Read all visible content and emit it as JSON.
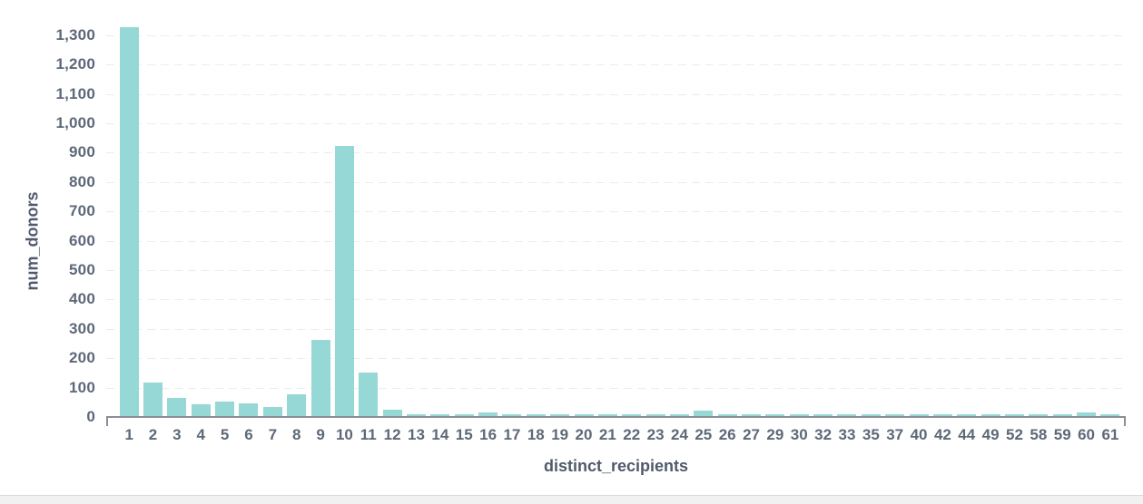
{
  "chart_data": {
    "type": "bar",
    "title": "",
    "xlabel": "distinct_recipients",
    "ylabel": "num_donors",
    "categories": [
      "1",
      "2",
      "3",
      "4",
      "5",
      "6",
      "7",
      "8",
      "9",
      "10",
      "11",
      "12",
      "13",
      "14",
      "15",
      "16",
      "17",
      "18",
      "19",
      "20",
      "21",
      "22",
      "23",
      "24",
      "25",
      "26",
      "27",
      "29",
      "30",
      "32",
      "33",
      "35",
      "37",
      "40",
      "42",
      "44",
      "49",
      "52",
      "58",
      "59",
      "60",
      "61"
    ],
    "values": [
      1325,
      113,
      62,
      41,
      48,
      42,
      31,
      73,
      258,
      920,
      147,
      22,
      7,
      6,
      6,
      13,
      6,
      6,
      5,
      6,
      5,
      6,
      5,
      6,
      18,
      7,
      6,
      6,
      6,
      5,
      6,
      5,
      6,
      5,
      6,
      6,
      6,
      5,
      6,
      6,
      11,
      6
    ],
    "ylim": [
      0,
      1300
    ],
    "ytick_step": 100,
    "y_ticks": [
      "0",
      "100",
      "200",
      "300",
      "400",
      "500",
      "600",
      "700",
      "800",
      "900",
      "1,000",
      "1,100",
      "1,200",
      "1,300"
    ],
    "grid": "horizontal-dashed",
    "legend": "none"
  },
  "colors": {
    "bar": "#95d8d5",
    "axis_line": "#8b8e96",
    "tick_label": "#5d6879",
    "axis_title": "#4f5a6b",
    "gridline": "#ececec",
    "background": "#ffffff",
    "footer_bg": "#f1f1f1",
    "footer_border": "#dadada"
  }
}
